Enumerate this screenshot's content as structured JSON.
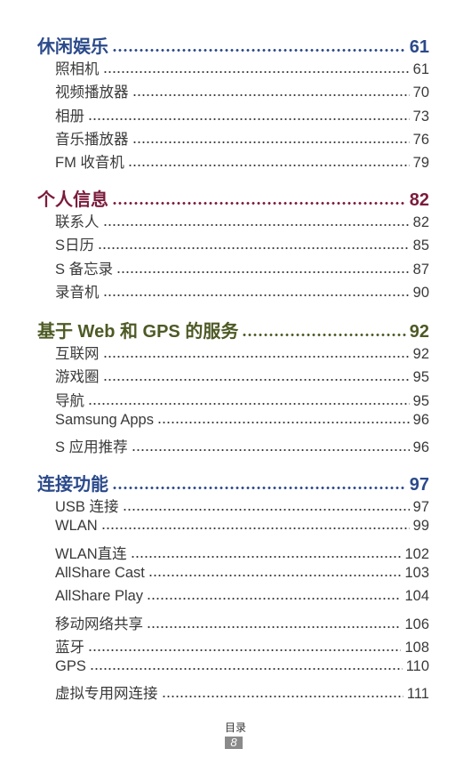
{
  "sections": [
    {
      "title": "休闲娱乐",
      "page": "61",
      "color": "#2b4a8b",
      "items": [
        {
          "label": "照相机",
          "page": "61"
        },
        {
          "label": "视频播放器",
          "page": "70"
        },
        {
          "label": "相册",
          "page": "73"
        },
        {
          "label": "音乐播放器",
          "page": "76"
        },
        {
          "label": "FM 收音机",
          "page": "79"
        }
      ]
    },
    {
      "title": "个人信息",
      "page": "82",
      "color": "#7b1c3c",
      "items": [
        {
          "label": "联系人",
          "page": "82"
        },
        {
          "label": "S日历",
          "page": "85"
        },
        {
          "label": "S 备忘录",
          "page": "87"
        },
        {
          "label": "录音机",
          "page": "90"
        }
      ]
    },
    {
      "title": "基于 Web 和 GPS 的服务",
      "page": "92",
      "color": "#4d5a25",
      "items": [
        {
          "label": "互联网",
          "page": "92"
        },
        {
          "label": "游戏圈",
          "page": "95"
        },
        {
          "label": "导航",
          "page": "95"
        },
        {
          "label": "Samsung Apps",
          "page": "96"
        },
        {
          "label": "S 应用推荐",
          "page": "96"
        }
      ]
    },
    {
      "title": "连接功能",
      "page": "97",
      "color": "#2b4a8b",
      "items": [
        {
          "label": "USB 连接",
          "page": "97"
        },
        {
          "label": "WLAN",
          "page": "99"
        },
        {
          "label": "WLAN直连",
          "page": "102"
        },
        {
          "label": "AllShare Cast",
          "page": "103"
        },
        {
          "label": "AllShare Play",
          "page": "104"
        },
        {
          "label": "移动网络共享",
          "page": "106"
        },
        {
          "label": "蓝牙",
          "page": "108"
        },
        {
          "label": "GPS",
          "page": "110"
        },
        {
          "label": "虚拟专用网连接",
          "page": "111"
        }
      ]
    }
  ],
  "footer": {
    "label": "目录",
    "page": "8"
  }
}
